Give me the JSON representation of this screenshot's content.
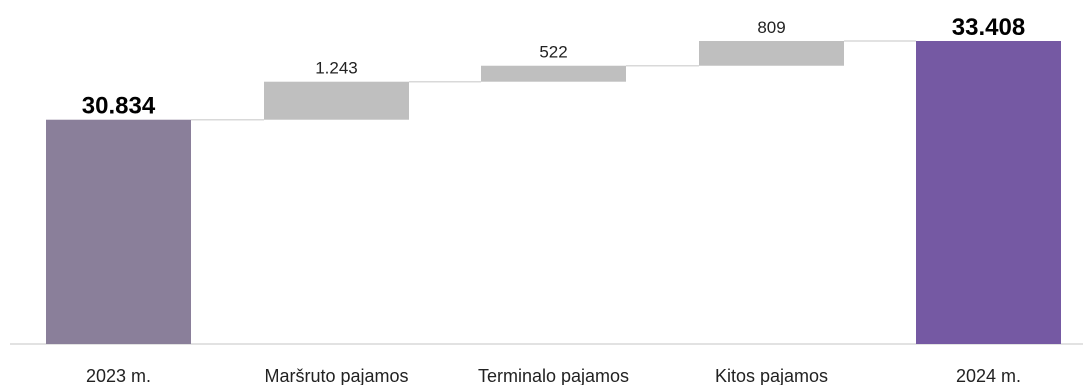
{
  "chart_data": {
    "type": "waterfall",
    "title": "",
    "xlabel": "",
    "ylabel": "",
    "ylim": [
      23500,
      33408
    ],
    "grid": false,
    "legend": "none",
    "categories": [
      "2023 m.",
      "Maršruto pajamos",
      "Terminalo pajamos",
      "Kitos pajamos",
      "2024 m."
    ],
    "bars": [
      {
        "category": "2023 m.",
        "kind": "total",
        "start": 0,
        "end": 30834,
        "label": "30.834",
        "color": "#8a7f9a"
      },
      {
        "category": "Maršruto pajamos",
        "kind": "delta",
        "start": 30834,
        "end": 32077,
        "label": "1.243",
        "color": "#bfbfbf"
      },
      {
        "category": "Terminalo pajamos",
        "kind": "delta",
        "start": 32077,
        "end": 32599,
        "label": "522",
        "color": "#bfbfbf"
      },
      {
        "category": "Kitos pajamos",
        "kind": "delta",
        "start": 32599,
        "end": 33408,
        "label": "809",
        "color": "#bfbfbf"
      },
      {
        "category": "2024 m.",
        "kind": "total",
        "start": 0,
        "end": 33408,
        "label": "33.408",
        "color": "#7559a3"
      }
    ]
  }
}
